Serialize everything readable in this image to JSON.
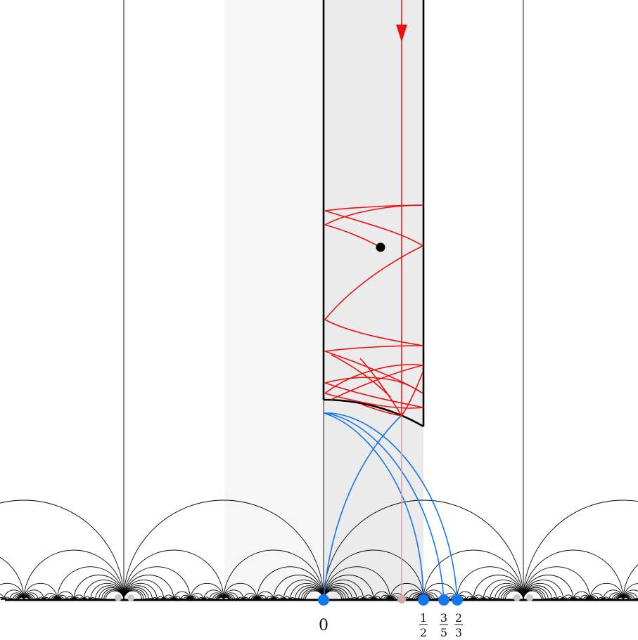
{
  "labels": {
    "zero": "0",
    "half": {
      "num": "1",
      "den": "2"
    },
    "three_fifths": {
      "num": "3",
      "den": "5"
    },
    "two_thirds": {
      "num": "2",
      "den": "3"
    }
  },
  "colors": {
    "background": "#ffffff",
    "strip_shade": "#f6f6f6",
    "fundamental_domain_fill": "#ebebeb",
    "tessellation_line": "#000000",
    "geodesic_red": "#ee1111",
    "geodesic_blue": "#1177ee",
    "cusp_point_blue": "#1177ee",
    "faint_point": "#d0a8a8",
    "gray_cusp": "#c8c8c8",
    "marked_point": "#000000"
  },
  "icons": {
    "arrow": "arrowhead-down-icon",
    "point": "black-dot-icon"
  }
}
